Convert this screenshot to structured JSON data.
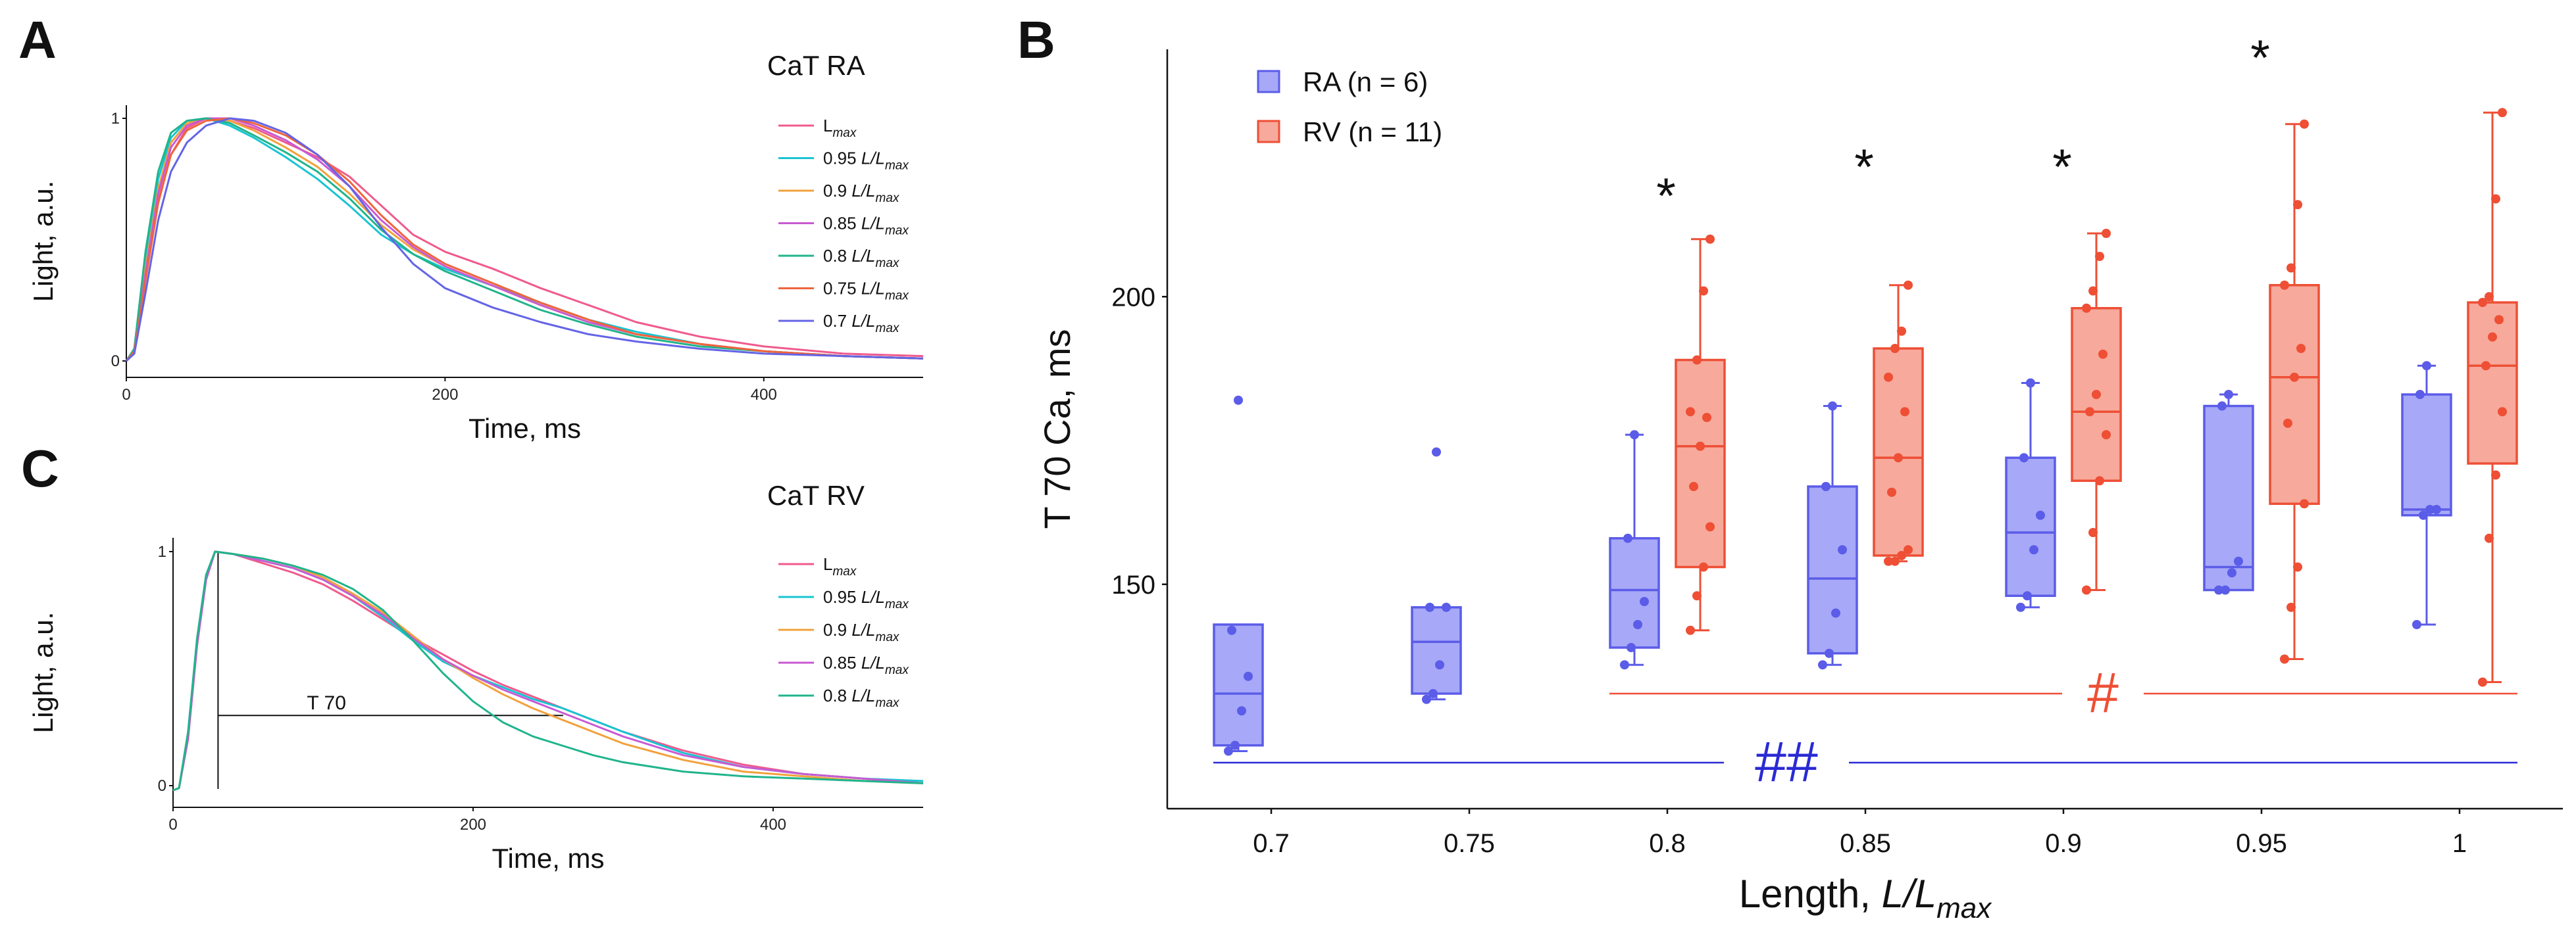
{
  "chart_data": [
    {
      "panel": "A",
      "type": "line",
      "title": "CaT RA",
      "xlabel": "Time, ms",
      "ylabel": "Light, a.u.",
      "xlim": [
        0,
        500
      ],
      "ylim": [
        0,
        1
      ],
      "xticks": [
        0,
        200,
        400
      ],
      "yticks": [
        0,
        1
      ],
      "legend": "top-right",
      "series": [
        {
          "name": "L",
          "name_sub": "max",
          "name_suffix": "",
          "color": "#f05a8c",
          "x": [
            0,
            5,
            12,
            20,
            28,
            38,
            50,
            65,
            80,
            100,
            120,
            140,
            160,
            180,
            200,
            230,
            260,
            290,
            320,
            360,
            400,
            450,
            500
          ],
          "y": [
            0,
            0.04,
            0.35,
            0.66,
            0.85,
            0.96,
            1.0,
            0.99,
            0.96,
            0.9,
            0.84,
            0.76,
            0.64,
            0.52,
            0.45,
            0.38,
            0.3,
            0.23,
            0.16,
            0.1,
            0.06,
            0.03,
            0.02
          ]
        },
        {
          "name": "0.95 ",
          "name_sub": "max",
          "name_suffix": "L/L",
          "color": "#19c4d2",
          "x": [
            0,
            5,
            12,
            20,
            28,
            38,
            50,
            65,
            80,
            100,
            120,
            140,
            160,
            180,
            200,
            230,
            260,
            290,
            320,
            360,
            400,
            450,
            500
          ],
          "y": [
            0,
            0.05,
            0.42,
            0.75,
            0.92,
            0.99,
            1.0,
            0.97,
            0.92,
            0.84,
            0.75,
            0.64,
            0.52,
            0.44,
            0.38,
            0.31,
            0.24,
            0.17,
            0.12,
            0.07,
            0.04,
            0.02,
            0.01
          ]
        },
        {
          "name": "0.9 ",
          "name_sub": "max",
          "name_suffix": "L/L",
          "color": "#f2a13c",
          "x": [
            0,
            5,
            12,
            20,
            28,
            38,
            50,
            65,
            80,
            100,
            120,
            140,
            160,
            180,
            200,
            230,
            260,
            290,
            320,
            360,
            400,
            450,
            500
          ],
          "y": [
            0,
            0.04,
            0.38,
            0.71,
            0.9,
            0.98,
            1.0,
            0.99,
            0.95,
            0.88,
            0.8,
            0.69,
            0.56,
            0.46,
            0.39,
            0.31,
            0.23,
            0.16,
            0.11,
            0.07,
            0.04,
            0.02,
            0.01
          ]
        },
        {
          "name": "0.85 ",
          "name_sub": "max",
          "name_suffix": "L/L",
          "color": "#c85ad2",
          "x": [
            0,
            5,
            12,
            20,
            28,
            38,
            50,
            65,
            80,
            100,
            120,
            140,
            160,
            180,
            200,
            230,
            260,
            290,
            320,
            360,
            400,
            450,
            500
          ],
          "y": [
            0,
            0.04,
            0.36,
            0.69,
            0.88,
            0.97,
            1.0,
            1.0,
            0.97,
            0.91,
            0.83,
            0.72,
            0.58,
            0.47,
            0.39,
            0.31,
            0.23,
            0.16,
            0.11,
            0.07,
            0.04,
            0.02,
            0.01
          ]
        },
        {
          "name": "0.8 ",
          "name_sub": "max",
          "name_suffix": "L/L",
          "color": "#20b48c",
          "x": [
            0,
            5,
            12,
            20,
            28,
            38,
            50,
            65,
            80,
            100,
            120,
            140,
            160,
            180,
            200,
            230,
            260,
            290,
            320,
            360,
            400,
            450,
            500
          ],
          "y": [
            0,
            0.05,
            0.45,
            0.78,
            0.94,
            0.99,
            1.0,
            0.98,
            0.93,
            0.86,
            0.78,
            0.67,
            0.54,
            0.44,
            0.37,
            0.29,
            0.21,
            0.15,
            0.1,
            0.06,
            0.04,
            0.02,
            0.01
          ]
        },
        {
          "name": "0.75 ",
          "name_sub": "max",
          "name_suffix": "L/L",
          "color": "#f0643c",
          "x": [
            0,
            5,
            12,
            20,
            28,
            38,
            50,
            65,
            80,
            100,
            120,
            140,
            160,
            180,
            200,
            230,
            260,
            290,
            320,
            360,
            400,
            450,
            500
          ],
          "y": [
            0,
            0.04,
            0.33,
            0.65,
            0.85,
            0.95,
            0.99,
            1.0,
            0.98,
            0.93,
            0.85,
            0.74,
            0.6,
            0.48,
            0.4,
            0.32,
            0.24,
            0.17,
            0.11,
            0.07,
            0.04,
            0.02,
            0.01
          ]
        },
        {
          "name": "0.7 ",
          "name_sub": "max",
          "name_suffix": "L/L",
          "color": "#6464e6",
          "x": [
            0,
            5,
            12,
            20,
            28,
            38,
            50,
            65,
            80,
            100,
            120,
            140,
            160,
            180,
            200,
            230,
            260,
            290,
            320,
            360,
            400,
            450,
            500
          ],
          "y": [
            0,
            0.03,
            0.28,
            0.58,
            0.78,
            0.9,
            0.97,
            1.0,
            0.99,
            0.94,
            0.85,
            0.72,
            0.55,
            0.4,
            0.3,
            0.22,
            0.16,
            0.11,
            0.08,
            0.05,
            0.03,
            0.02,
            0.01
          ]
        }
      ]
    },
    {
      "panel": "C",
      "type": "line",
      "title": "CaT RV",
      "xlabel": "Time, ms",
      "ylabel": "Light, a.u.",
      "xlim": [
        0,
        500
      ],
      "ylim": [
        0,
        1
      ],
      "xticks": [
        0,
        200,
        400
      ],
      "yticks": [
        0,
        1
      ],
      "legend": "top-right",
      "annotation": {
        "label": "T 70",
        "t_start": 30,
        "t_end": 260,
        "level": 0.3
      },
      "series": [
        {
          "name": "L",
          "name_sub": "max",
          "name_suffix": "",
          "color": "#f05a8c",
          "x": [
            0,
            4,
            10,
            16,
            22,
            28,
            40,
            60,
            80,
            100,
            120,
            140,
            160,
            180,
            200,
            220,
            240,
            260,
            280,
            300,
            340,
            380,
            420,
            460,
            500
          ],
          "y": [
            -0.02,
            -0.01,
            0.2,
            0.6,
            0.88,
            1.0,
            0.99,
            0.95,
            0.91,
            0.86,
            0.79,
            0.71,
            0.63,
            0.56,
            0.49,
            0.43,
            0.38,
            0.33,
            0.28,
            0.23,
            0.15,
            0.09,
            0.05,
            0.03,
            0.01
          ]
        },
        {
          "name": "0.95 ",
          "name_sub": "max",
          "name_suffix": "L/L",
          "color": "#19c4d2",
          "x": [
            0,
            4,
            10,
            16,
            22,
            28,
            40,
            60,
            80,
            100,
            120,
            140,
            160,
            180,
            200,
            220,
            240,
            260,
            280,
            300,
            340,
            380,
            420,
            460,
            500
          ],
          "y": [
            -0.02,
            -0.01,
            0.22,
            0.62,
            0.9,
            1.0,
            0.99,
            0.96,
            0.93,
            0.88,
            0.81,
            0.72,
            0.62,
            0.53,
            0.47,
            0.42,
            0.37,
            0.33,
            0.28,
            0.23,
            0.14,
            0.08,
            0.05,
            0.03,
            0.02
          ]
        },
        {
          "name": "0.9 ",
          "name_sub": "max",
          "name_suffix": "L/L",
          "color": "#f2a13c",
          "x": [
            0,
            4,
            10,
            16,
            22,
            28,
            40,
            60,
            80,
            100,
            120,
            140,
            160,
            180,
            200,
            220,
            240,
            260,
            280,
            300,
            340,
            380,
            420,
            460,
            500
          ],
          "y": [
            -0.02,
            -0.01,
            0.21,
            0.61,
            0.89,
            1.0,
            0.99,
            0.97,
            0.94,
            0.89,
            0.82,
            0.74,
            0.64,
            0.54,
            0.46,
            0.39,
            0.33,
            0.28,
            0.23,
            0.18,
            0.11,
            0.06,
            0.04,
            0.02,
            0.01
          ]
        },
        {
          "name": "0.85 ",
          "name_sub": "max",
          "name_suffix": "L/L",
          "color": "#c85ad2",
          "x": [
            0,
            4,
            10,
            16,
            22,
            28,
            40,
            60,
            80,
            100,
            120,
            140,
            160,
            180,
            200,
            220,
            240,
            260,
            280,
            300,
            340,
            380,
            420,
            460,
            500
          ],
          "y": [
            -0.02,
            -0.01,
            0.2,
            0.6,
            0.88,
            1.0,
            0.99,
            0.96,
            0.93,
            0.88,
            0.81,
            0.73,
            0.63,
            0.54,
            0.47,
            0.41,
            0.36,
            0.31,
            0.26,
            0.21,
            0.13,
            0.08,
            0.05,
            0.03,
            0.01
          ]
        },
        {
          "name": "0.8 ",
          "name_sub": "max",
          "name_suffix": "L/L",
          "color": "#20b48c",
          "x": [
            0,
            4,
            10,
            16,
            22,
            28,
            40,
            60,
            80,
            100,
            120,
            140,
            160,
            180,
            200,
            220,
            240,
            260,
            280,
            300,
            340,
            380,
            420,
            460,
            500
          ],
          "y": [
            -0.02,
            -0.01,
            0.23,
            0.63,
            0.9,
            1.0,
            0.99,
            0.97,
            0.94,
            0.9,
            0.84,
            0.75,
            0.62,
            0.48,
            0.36,
            0.27,
            0.21,
            0.17,
            0.13,
            0.1,
            0.06,
            0.04,
            0.03,
            0.02,
            0.01
          ]
        }
      ]
    },
    {
      "panel": "B",
      "type": "box",
      "ylabel": "T 70 Ca, ms",
      "xlabel": "Length, ",
      "xlabel_italic": "L/L",
      "xlabel_sub": "max",
      "ylim": [
        111,
        243
      ],
      "yticks": [
        150,
        200
      ],
      "categories": [
        "0.7",
        "0.75",
        "0.8",
        "0.85",
        "0.9",
        "0.95",
        "1"
      ],
      "legend": "top-left",
      "series": [
        {
          "name": "RA (n = 6)",
          "fill": "#a7a8f7",
          "stroke": "#5b5ce8",
          "boxes": [
            {
              "category": "0.7",
              "min": 121,
              "q1": 122,
              "median": 131,
              "q3": 143,
              "max": 143,
              "outliers": [
                182
              ],
              "points": [
                121,
                122,
                128,
                134,
                142
              ]
            },
            {
              "category": "0.75",
              "min": 130,
              "q1": 131,
              "median": 140,
              "q3": 146,
              "max": 146,
              "outliers": [
                173
              ],
              "points": [
                130,
                131,
                136,
                146,
                146
              ]
            },
            {
              "category": "0.8",
              "min": 136,
              "q1": 139,
              "median": 149,
              "q3": 158,
              "max": 176,
              "outliers": [],
              "points": [
                136,
                139,
                143,
                147,
                158,
                176
              ]
            },
            {
              "category": "0.85",
              "min": 136,
              "q1": 138,
              "median": 151,
              "q3": 167,
              "max": 181,
              "outliers": [],
              "points": [
                136,
                138,
                145,
                156,
                167,
                181
              ]
            },
            {
              "category": "0.9",
              "min": 146,
              "q1": 148,
              "median": 159,
              "q3": 172,
              "max": 185,
              "outliers": [],
              "points": [
                146,
                148,
                156,
                162,
                172,
                185
              ]
            },
            {
              "category": "0.95",
              "min": 149,
              "q1": 149,
              "median": 153,
              "q3": 181,
              "max": 183,
              "outliers": [],
              "points": [
                149,
                149,
                152,
                154,
                181,
                183
              ]
            },
            {
              "category": "1",
              "min": 143,
              "q1": 162,
              "median": 163,
              "q3": 183,
              "max": 188,
              "outliers": [],
              "points": [
                143,
                162,
                163,
                163,
                183,
                188
              ]
            }
          ]
        },
        {
          "name": "RV (n = 11)",
          "fill": "#f7a99c",
          "stroke": "#ee4f35",
          "boxes": [
            {
              "category": "0.8",
              "min": 142,
              "q1": 153,
              "median": 174,
              "q3": 189,
              "max": 210,
              "outliers": [],
              "points": [
                142,
                148,
                153,
                160,
                167,
                174,
                179,
                180,
                189,
                201,
                210
              ]
            },
            {
              "category": "0.85",
              "min": 154,
              "q1": 155,
              "median": 172,
              "q3": 191,
              "max": 202,
              "outliers": [],
              "points": [
                154,
                154,
                155,
                156,
                166,
                172,
                180,
                186,
                191,
                194,
                202
              ]
            },
            {
              "category": "0.9",
              "min": 149,
              "q1": 168,
              "median": 180,
              "q3": 198,
              "max": 211,
              "outliers": [],
              "points": [
                149,
                159,
                168,
                176,
                180,
                183,
                190,
                198,
                201,
                207,
                211
              ]
            },
            {
              "category": "0.95",
              "min": 137,
              "q1": 164,
              "median": 186,
              "q3": 202,
              "max": 230,
              "outliers": [],
              "points": [
                137,
                146,
                153,
                164,
                178,
                186,
                191,
                202,
                205,
                216,
                230
              ]
            },
            {
              "category": "1",
              "min": 133,
              "q1": 171,
              "median": 188,
              "q3": 199,
              "max": 232,
              "outliers": [],
              "points": [
                133,
                158,
                169,
                180,
                188,
                193,
                196,
                199,
                200,
                217,
                232
              ]
            }
          ]
        }
      ],
      "significance_stars": [
        {
          "category": "0.8",
          "label": "*",
          "y": 218
        },
        {
          "category": "0.85",
          "label": "*",
          "y": 223
        },
        {
          "category": "0.9",
          "label": "*",
          "y": 223
        },
        {
          "category": "0.95",
          "label": "*",
          "y": 242
        }
      ],
      "trend_markers": [
        {
          "label": "#",
          "from": "0.8",
          "to": "1",
          "y": 131,
          "color": "#ee4f35"
        },
        {
          "label": "##",
          "from": "0.7",
          "to": "1",
          "y": 119,
          "color": "#2a2ad4"
        }
      ]
    }
  ],
  "panels": {
    "a": "A",
    "b": "B",
    "c": "C"
  }
}
